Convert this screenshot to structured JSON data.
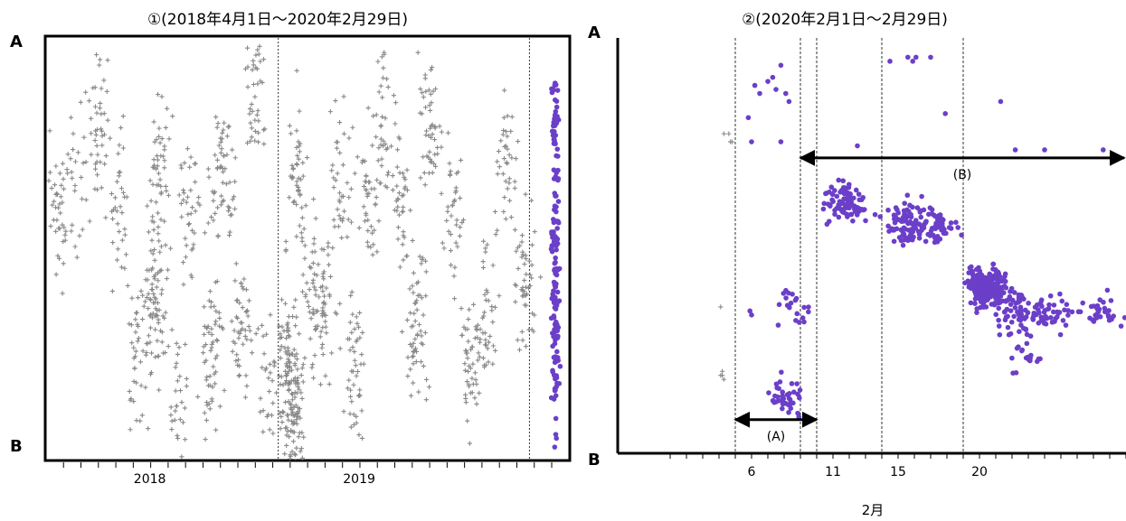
{
  "chart_data": [
    {
      "type": "scatter",
      "title": "①(2018年4月1日～2020年2月29日)",
      "top_label": "A",
      "bottom_label": "B",
      "x_type": "date",
      "xlim": [
        "2017-09-15",
        "2020-03-05"
      ],
      "ylim": [
        0,
        1
      ],
      "year_ticks": [
        {
          "label": "2018",
          "x": "2018-03-10"
        },
        {
          "label": "2019",
          "x": "2019-03-10"
        }
      ],
      "vlines": [
        {
          "x": "2018-10-20",
          "style": "dotted"
        },
        {
          "x": "2020-01-01",
          "style": "dotted"
        }
      ],
      "series": [
        {
          "color": "#888888",
          "marker": "plus",
          "period": [
            "2017-09-15",
            "2020-01-31"
          ],
          "clusters": [
            {
              "x": "2017-10-01",
              "y": 0.58,
              "n": 40
            },
            {
              "x": "2017-11-05",
              "y": 0.66,
              "n": 25
            },
            {
              "x": "2017-12-10",
              "y": 0.8,
              "n": 45
            },
            {
              "x": "2018-01-15",
              "y": 0.6,
              "n": 35
            },
            {
              "x": "2018-02-20",
              "y": 0.2,
              "n": 40
            },
            {
              "x": "2018-03-20",
              "y": 0.37,
              "n": 80
            },
            {
              "x": "2018-03-25",
              "y": 0.68,
              "n": 50
            },
            {
              "x": "2018-04-25",
              "y": 0.12,
              "n": 30
            },
            {
              "x": "2018-05-20",
              "y": 0.58,
              "n": 40
            },
            {
              "x": "2018-06-25",
              "y": 0.24,
              "n": 60
            },
            {
              "x": "2018-07-15",
              "y": 0.68,
              "n": 60
            },
            {
              "x": "2018-08-20",
              "y": 0.3,
              "n": 50
            },
            {
              "x": "2018-09-10",
              "y": 0.86,
              "n": 40
            },
            {
              "x": "2018-10-05",
              "y": 0.16,
              "n": 30
            },
            {
              "x": "2018-11-05",
              "y": 0.22,
              "n": 60
            },
            {
              "x": "2018-11-20",
              "y": 0.67,
              "n": 50
            },
            {
              "x": "2018-12-20",
              "y": 0.4,
              "n": 40
            },
            {
              "x": "2019-01-10",
              "y": 0.35,
              "n": 50
            },
            {
              "x": "2019-02-10",
              "y": 0.68,
              "n": 40
            },
            {
              "x": "2019-03-01",
              "y": 0.21,
              "n": 50
            },
            {
              "x": "2019-03-25",
              "y": 0.6,
              "n": 40
            },
            {
              "x": "2019-04-20",
              "y": 0.8,
              "n": 40
            },
            {
              "x": "2019-05-20",
              "y": 0.6,
              "n": 40
            },
            {
              "x": "2019-06-20",
              "y": 0.32,
              "n": 60
            },
            {
              "x": "2019-07-10",
              "y": 0.8,
              "n": 50
            },
            {
              "x": "2019-08-20",
              "y": 0.6,
              "n": 40
            },
            {
              "x": "2019-09-20",
              "y": 0.21,
              "n": 50
            },
            {
              "x": "2019-10-20",
              "y": 0.36,
              "n": 40
            },
            {
              "x": "2019-11-20",
              "y": 0.7,
              "n": 40
            },
            {
              "x": "2019-12-25",
              "y": 0.42,
              "n": 50
            },
            {
              "x": "2018-11-15",
              "y": 0.13,
              "n": 100
            }
          ]
        },
        {
          "color": "#6b3fc8",
          "marker": "circle",
          "period": [
            "2020-02-01",
            "2020-02-29"
          ],
          "clusters": [
            {
              "x": "2020-02-15",
              "y": 0.8,
              "n": 40
            },
            {
              "x": "2020-02-15",
              "y": 0.58,
              "n": 40
            },
            {
              "x": "2020-02-15",
              "y": 0.37,
              "n": 60
            },
            {
              "x": "2020-02-15",
              "y": 0.17,
              "n": 30
            }
          ]
        }
      ]
    },
    {
      "type": "scatter",
      "title": "②(2020年2月1日～2月29日)",
      "top_label": "A",
      "bottom_label": "B",
      "xlabel": "2月",
      "xlim": [
        1,
        29
      ],
      "ylim": [
        0,
        1
      ],
      "x_ticks": [
        {
          "label": "6",
          "x": 6
        },
        {
          "label": "11",
          "x": 11
        },
        {
          "label": "15",
          "x": 15
        },
        {
          "label": "20",
          "x": 20
        }
      ],
      "vlines": [
        5,
        9,
        10,
        14,
        19
      ],
      "arrows": [
        {
          "label": "(A)",
          "x": [
            5,
            10
          ],
          "y": 0.07
        },
        {
          "label": "(B)",
          "x": [
            9,
            29
          ],
          "y": 0.72
        }
      ],
      "series": [
        {
          "color": "#888888",
          "marker": "plus",
          "points": [
            [
              4.3,
              0.78
            ],
            [
              4.7,
              0.76
            ],
            [
              4.8,
              0.76
            ],
            [
              4.6,
              0.78
            ],
            [
              4.1,
              0.35
            ],
            [
              4.2,
              0.18
            ],
            [
              4.3,
              0.17
            ],
            [
              4.1,
              0.18
            ],
            [
              4.2,
              0.19
            ]
          ]
        },
        {
          "color": "#6b3fc8",
          "marker": "circle",
          "points": [
            [
              5.8,
              0.82
            ],
            [
              6.2,
              0.9
            ],
            [
              6.5,
              0.88
            ],
            [
              7.0,
              0.91
            ],
            [
              7.5,
              0.89
            ],
            [
              7.3,
              0.92
            ],
            [
              7.8,
              0.95
            ],
            [
              8.1,
              0.88
            ],
            [
              8.3,
              0.86
            ],
            [
              6.0,
              0.76
            ],
            [
              5.9,
              0.34
            ],
            [
              6.0,
              0.33
            ],
            [
              7.8,
              0.76
            ],
            [
              12.5,
              0.75
            ],
            [
              17.9,
              0.83
            ],
            [
              21.3,
              0.86
            ],
            [
              22.2,
              0.74
            ],
            [
              24.0,
              0.74
            ],
            [
              27.6,
              0.74
            ],
            [
              15.6,
              0.97
            ],
            [
              15.9,
              0.96
            ],
            [
              16.1,
              0.97
            ],
            [
              14.5,
              0.96
            ],
            [
              17.0,
              0.97
            ]
          ],
          "clusters": [
            {
              "x": 11.8,
              "y": 0.61,
              "n": 90
            },
            {
              "x": 15.5,
              "y": 0.56,
              "n": 90
            },
            {
              "x": 17.5,
              "y": 0.55,
              "n": 50
            },
            {
              "x": 20.5,
              "y": 0.4,
              "n": 220
            },
            {
              "x": 22.5,
              "y": 0.34,
              "n": 60
            },
            {
              "x": 24.5,
              "y": 0.34,
              "n": 40
            },
            {
              "x": 27.5,
              "y": 0.34,
              "n": 30
            },
            {
              "x": 8.0,
              "y": 0.12,
              "n": 40
            },
            {
              "x": 8.5,
              "y": 0.34,
              "n": 20
            },
            {
              "x": 22.8,
              "y": 0.24,
              "n": 20
            }
          ]
        }
      ]
    }
  ]
}
